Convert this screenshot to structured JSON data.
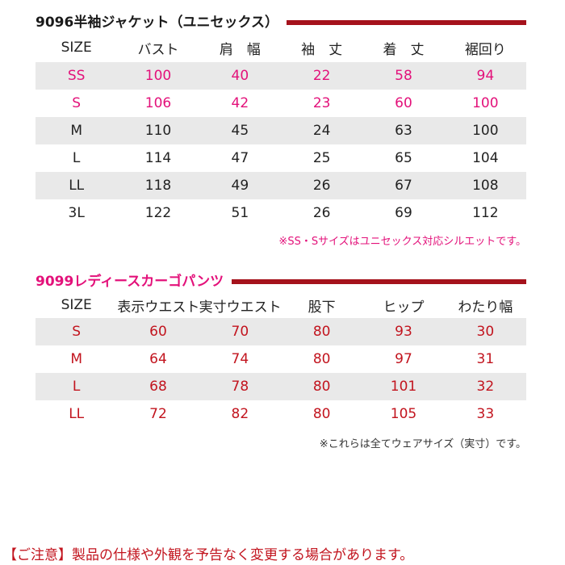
{
  "jacket": {
    "title": "9096半袖ジャケット（ユニセックス）",
    "headers": [
      "SIZE",
      "バスト",
      "肩　幅",
      "袖　丈",
      "着　丈",
      "裾回り"
    ],
    "rows": [
      [
        "SS",
        "100",
        "40",
        "22",
        "58",
        "94"
      ],
      [
        "S",
        "106",
        "42",
        "23",
        "60",
        "100"
      ],
      [
        "M",
        "110",
        "45",
        "24",
        "63",
        "100"
      ],
      [
        "L",
        "114",
        "47",
        "25",
        "65",
        "104"
      ],
      [
        "LL",
        "118",
        "49",
        "26",
        "67",
        "108"
      ],
      [
        "3L",
        "122",
        "51",
        "26",
        "69",
        "112"
      ]
    ],
    "note": "※SS・Sサイズはユニセックス対応シルエットです。"
  },
  "pants": {
    "title": "9099レディースカーゴパンツ",
    "headers": [
      "SIZE",
      "表示ウエスト",
      "実寸ウエスト",
      "股下",
      "ヒップ",
      "わたり幅"
    ],
    "rows": [
      [
        "S",
        "60",
        "70",
        "80",
        "93",
        "30"
      ],
      [
        "M",
        "64",
        "74",
        "80",
        "97",
        "31"
      ],
      [
        "L",
        "68",
        "78",
        "80",
        "101",
        "32"
      ],
      [
        "LL",
        "72",
        "82",
        "80",
        "105",
        "33"
      ]
    ],
    "note": "※これらは全てウェアサイズ（実寸）です。"
  },
  "caution": "【ご注意】製品の仕様や外観を予告なく変更する場合があります。",
  "colors": {
    "accent_bar": "#a5121c",
    "pink_text": "#e3117a",
    "red_text": "#c2141e",
    "row_stripe": "#e9e9e9"
  }
}
